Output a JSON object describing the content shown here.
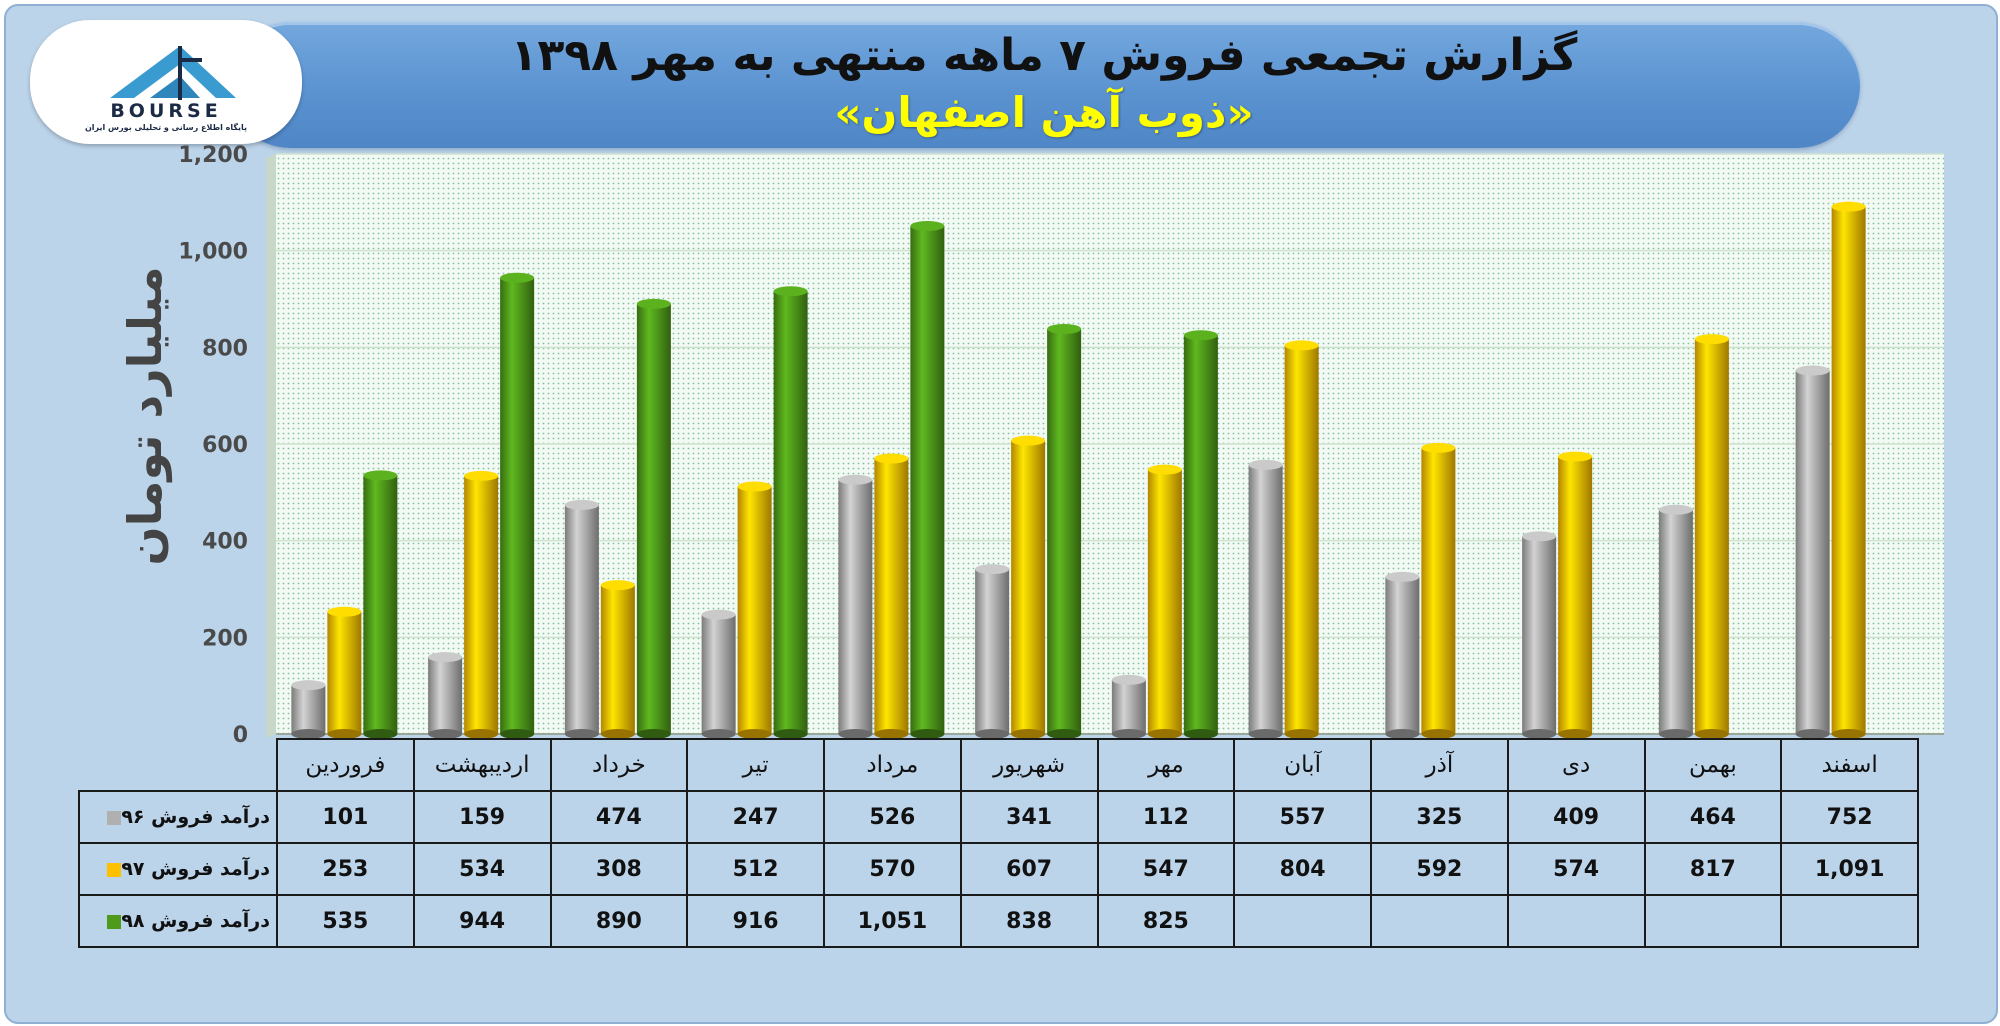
{
  "title": "گزارش تجمعی فروش ۷ ماهه منتهی به مهر ۱۳۹۸",
  "subtitle": "«ذوب آهن اصفهان»",
  "logo": {
    "word": "BOURSE",
    "caption": "پایگاه اطلاع رسانی و تحلیلی بورس ایران"
  },
  "colors": {
    "gray": "#b0b0b0",
    "yellow": "#ffc000",
    "green": "#4f9a1a"
  },
  "chart_data": {
    "type": "bar",
    "ylabel": "میلیارد تومان",
    "ylim": [
      0,
      1200
    ],
    "yticks": [
      "0",
      "200",
      "400",
      "600",
      "800",
      "1,000",
      "1,200"
    ],
    "categories": [
      "فروردین",
      "اردیبهشت",
      "خرداد",
      "تیر",
      "مرداد",
      "شهریور",
      "مهر",
      "آبان",
      "آذر",
      "دی",
      "بهمن",
      "اسفند"
    ],
    "series": [
      {
        "name": "درآمد فروش ۹۶",
        "color": "#b0b0b0",
        "values": [
          101,
          159,
          474,
          247,
          526,
          341,
          112,
          557,
          325,
          409,
          464,
          752
        ],
        "labels": [
          "101",
          "159",
          "474",
          "247",
          "526",
          "341",
          "112",
          "557",
          "325",
          "409",
          "464",
          "752"
        ]
      },
      {
        "name": "درآمد فروش ۹۷",
        "color": "#ffc000",
        "values": [
          253,
          534,
          308,
          512,
          570,
          607,
          547,
          804,
          592,
          574,
          817,
          1091
        ],
        "labels": [
          "253",
          "534",
          "308",
          "512",
          "570",
          "607",
          "547",
          "804",
          "592",
          "574",
          "817",
          "1,091"
        ]
      },
      {
        "name": "درآمد فروش ۹۸",
        "color": "#4f9a1a",
        "values": [
          535,
          944,
          890,
          916,
          1051,
          838,
          825,
          null,
          null,
          null,
          null,
          null
        ],
        "labels": [
          "535",
          "944",
          "890",
          "916",
          "1,051",
          "838",
          "825",
          "",
          "",
          "",
          "",
          ""
        ]
      }
    ],
    "grid": true,
    "legend": "table"
  }
}
